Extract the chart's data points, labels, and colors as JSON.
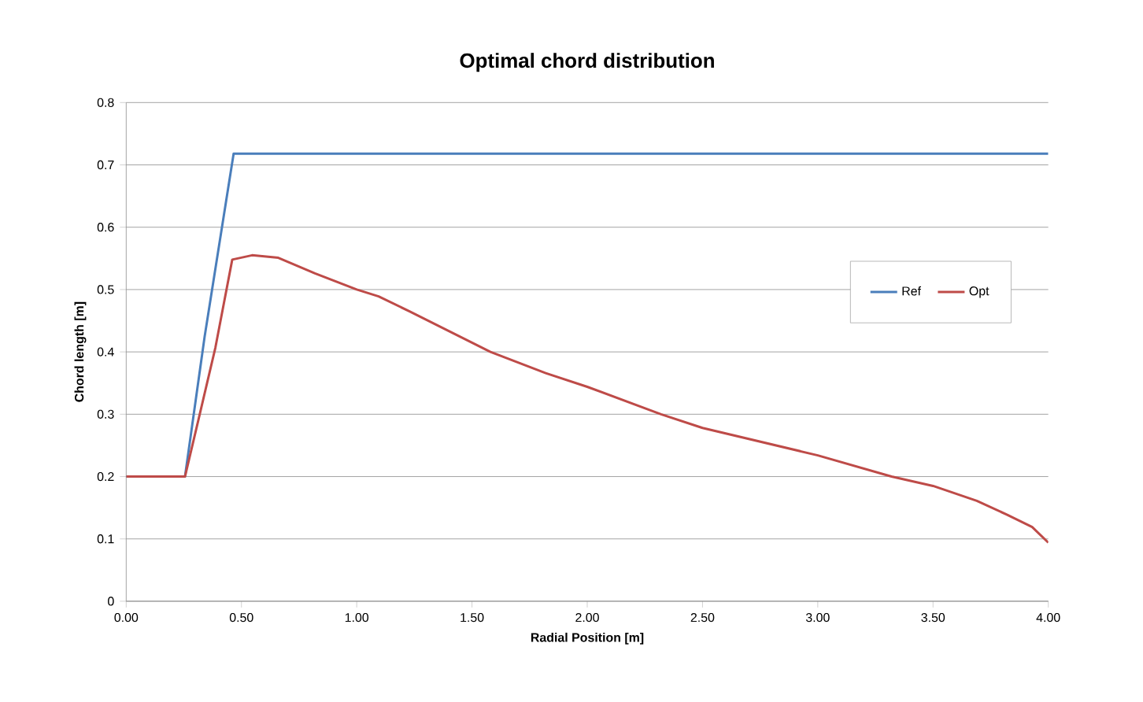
{
  "chart_data": {
    "type": "line",
    "title": "Optimal chord distribution",
    "xlabel": "Radial Position [m]",
    "ylabel": "Chord length [m]",
    "xlim": [
      0,
      4
    ],
    "xticks": [
      {
        "value": 0,
        "label": "0.00"
      },
      {
        "value": 0.5,
        "label": "0.50"
      },
      {
        "value": 1,
        "label": "1.00"
      },
      {
        "value": 1.5,
        "label": "1.50"
      },
      {
        "value": 2,
        "label": "2.00"
      },
      {
        "value": 2.5,
        "label": "2.50"
      },
      {
        "value": 3,
        "label": "3.00"
      },
      {
        "value": 3.5,
        "label": "3.50"
      },
      {
        "value": 4,
        "label": "4.00"
      }
    ],
    "ylim": [
      0,
      0.8
    ],
    "yticks": [
      0,
      0.1,
      0.2,
      0.3,
      0.4,
      0.5,
      0.6,
      0.7,
      0.8
    ],
    "grid": "y",
    "legend": "right",
    "marker": "none",
    "line_style": "solid",
    "series": [
      {
        "name": "Ref",
        "color": "#4a7ebb",
        "x": [
          0,
          0.255,
          0.34,
          0.466,
          1.0,
          2.0,
          3.0,
          4.0
        ],
        "values": [
          0.2,
          0.2,
          0.424,
          0.718,
          0.718,
          0.718,
          0.718,
          0.718
        ]
      },
      {
        "name": "Opt",
        "color": "#be4b48",
        "x": [
          0,
          0.255,
          0.319,
          0.387,
          0.46,
          0.546,
          0.66,
          0.819,
          1.0,
          1.095,
          1.229,
          1.58,
          1.82,
          2.0,
          2.32,
          2.5,
          3.0,
          3.32,
          3.5,
          3.69,
          3.82,
          3.93,
          4.0
        ],
        "values": [
          0.2,
          0.2,
          0.3,
          0.407,
          0.548,
          0.555,
          0.551,
          0.526,
          0.5,
          0.489,
          0.465,
          0.4,
          0.366,
          0.344,
          0.3,
          0.278,
          0.234,
          0.2,
          0.185,
          0.161,
          0.139,
          0.119,
          0.094
        ]
      }
    ]
  }
}
